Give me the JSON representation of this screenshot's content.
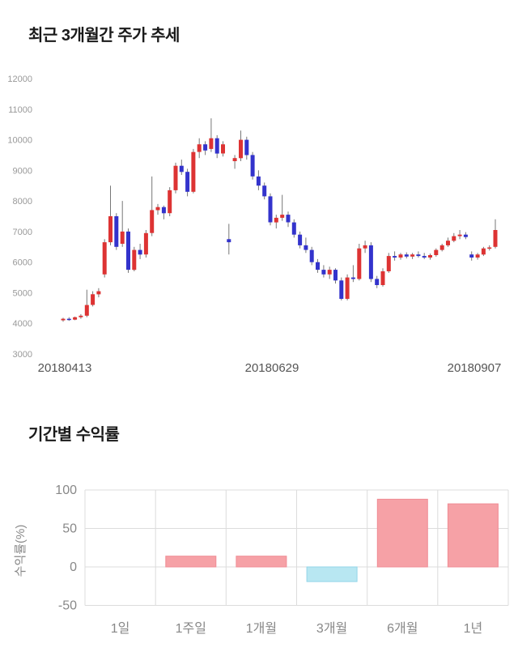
{
  "titles": {
    "price_trend": "최근 3개월간 주가 추세",
    "period_returns": "기간별 수익률"
  },
  "chart_data": [
    {
      "type": "candlestick",
      "title": "최근 3개월간 주가 추세",
      "ylim": [
        3000,
        12000
      ],
      "y_ticks": [
        12000,
        11000,
        10000,
        9000,
        8000,
        7000,
        6000,
        5000,
        4000,
        3000
      ],
      "x_labels": [
        "20180413",
        "20180629",
        "20180907"
      ],
      "colors": {
        "up": "#dd3333",
        "down": "#3333cc",
        "wick": "#777777",
        "axis_text": "#999999",
        "date_text": "#555555"
      },
      "candles_format": [
        "open",
        "high",
        "low",
        "close"
      ],
      "candles": [
        [
          4100,
          4180,
          4050,
          4150
        ],
        [
          4150,
          4200,
          4080,
          4120
        ],
        [
          4120,
          4220,
          4100,
          4200
        ],
        [
          4200,
          4300,
          4150,
          4250
        ],
        [
          4250,
          5100,
          4200,
          4600
        ],
        [
          4600,
          5050,
          4550,
          4950
        ],
        [
          4950,
          5150,
          4850,
          5050
        ],
        [
          5600,
          6750,
          5500,
          6650
        ],
        [
          6650,
          8500,
          6550,
          7500
        ],
        [
          7500,
          7600,
          6400,
          6500
        ],
        [
          6600,
          8000,
          6500,
          7000
        ],
        [
          7000,
          7100,
          5650,
          5750
        ],
        [
          5750,
          6500,
          5700,
          6400
        ],
        [
          6400,
          6600,
          6100,
          6250
        ],
        [
          6250,
          7050,
          6150,
          6950
        ],
        [
          6950,
          8800,
          6850,
          7700
        ],
        [
          7700,
          7900,
          7550,
          7800
        ],
        [
          7800,
          7850,
          7400,
          7600
        ],
        [
          7600,
          8450,
          7500,
          8350
        ],
        [
          8350,
          9250,
          8250,
          9150
        ],
        [
          9150,
          9350,
          8850,
          8950
        ],
        [
          8950,
          9050,
          8150,
          8300
        ],
        [
          8300,
          9700,
          8250,
          9600
        ],
        [
          9600,
          10050,
          9400,
          9850
        ],
        [
          9850,
          9950,
          9500,
          9650
        ],
        [
          9700,
          10700,
          9600,
          10050
        ],
        [
          10050,
          10150,
          9400,
          9550
        ],
        [
          9550,
          9950,
          9450,
          9850
        ],
        [
          6750,
          7250,
          6250,
          6650
        ],
        [
          9300,
          9500,
          9050,
          9400
        ],
        [
          9400,
          10300,
          9300,
          10000
        ],
        [
          10000,
          10100,
          9350,
          9500
        ],
        [
          9500,
          9600,
          8700,
          8800
        ],
        [
          8800,
          9000,
          8350,
          8500
        ],
        [
          8500,
          8600,
          8050,
          8150
        ],
        [
          8150,
          8250,
          7200,
          7300
        ],
        [
          7300,
          7550,
          7100,
          7450
        ],
        [
          7450,
          8200,
          7350,
          7550
        ],
        [
          7550,
          7650,
          7150,
          7300
        ],
        [
          7300,
          7400,
          6800,
          6900
        ],
        [
          6900,
          7000,
          6450,
          6550
        ],
        [
          6550,
          6800,
          6300,
          6400
        ],
        [
          6400,
          6500,
          5900,
          6000
        ],
        [
          6000,
          6100,
          5650,
          5750
        ],
        [
          5750,
          5900,
          5500,
          5600
        ],
        [
          5600,
          5850,
          5450,
          5750
        ],
        [
          5750,
          5800,
          5300,
          5400
        ],
        [
          5400,
          5500,
          4750,
          4800
        ],
        [
          4800,
          5600,
          4750,
          5500
        ],
        [
          5500,
          5900,
          5350,
          5450
        ],
        [
          5450,
          6600,
          5400,
          6450
        ],
        [
          6450,
          6700,
          6300,
          6550
        ],
        [
          6550,
          6650,
          5350,
          5450
        ],
        [
          5450,
          5550,
          5150,
          5250
        ],
        [
          5250,
          5800,
          5200,
          5700
        ],
        [
          5700,
          6300,
          5650,
          6200
        ],
        [
          6200,
          6350,
          6050,
          6150
        ],
        [
          6150,
          6300,
          6080,
          6250
        ],
        [
          6250,
          6320,
          6120,
          6180
        ],
        [
          6180,
          6300,
          6100,
          6250
        ],
        [
          6250,
          6350,
          6150,
          6200
        ],
        [
          6200,
          6300,
          6100,
          6150
        ],
        [
          6150,
          6280,
          6080,
          6230
        ],
        [
          6230,
          6450,
          6180,
          6400
        ],
        [
          6400,
          6600,
          6350,
          6550
        ],
        [
          6550,
          6800,
          6500,
          6700
        ],
        [
          6700,
          6950,
          6650,
          6850
        ],
        [
          6850,
          7050,
          6750,
          6900
        ],
        [
          6900,
          6980,
          6750,
          6820
        ],
        [
          6250,
          6350,
          6050,
          6150
        ],
        [
          6150,
          6300,
          6080,
          6250
        ],
        [
          6250,
          6500,
          6200,
          6450
        ],
        [
          6450,
          6550,
          6380,
          6480
        ],
        [
          6500,
          7400,
          6450,
          7050
        ]
      ]
    },
    {
      "type": "bar",
      "title": "기간별 수익률",
      "categories": [
        "1일",
        "1주일",
        "1개월",
        "3개월",
        "6개월",
        "1년"
      ],
      "values": [
        0,
        14,
        14,
        -19,
        88,
        82
      ],
      "ylabel": "수익률(%)",
      "xlabel": "",
      "y_ticks": [
        100,
        50,
        0,
        -50
      ],
      "ylim": [
        -60,
        110
      ],
      "grid": true,
      "legend": "none",
      "colors": {
        "positive": "#f6a1a6",
        "positive_border": "#f08d95",
        "negative": "#b8e7f2",
        "negative_border": "#93d6e8",
        "grid": "#dcdcdc",
        "text": "#888888"
      }
    }
  ]
}
